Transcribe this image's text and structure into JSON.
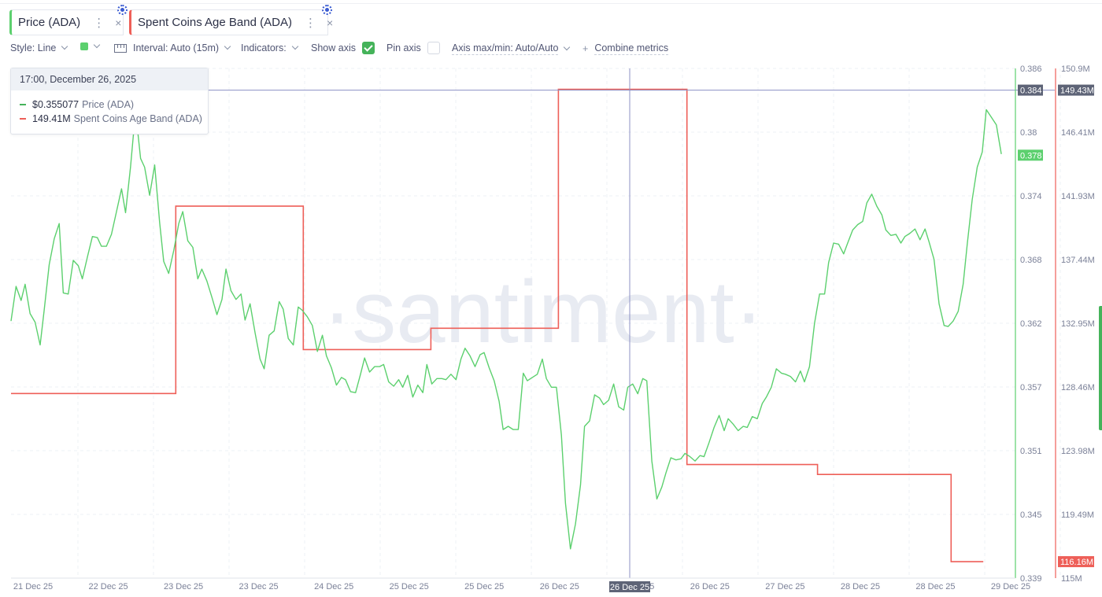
{
  "tabs": [
    {
      "label": "Price (ADA)",
      "color": "#5cd06e",
      "menu": "⋮",
      "close": "×"
    },
    {
      "label": "Spent Coins Age Band (ADA)",
      "color": "#ee5f58",
      "menu": "⋮",
      "close": "×"
    }
  ],
  "toolbar": {
    "style": "Style: Line",
    "interval": "Interval: Auto (15m)",
    "indicators": "Indicators:",
    "show_axis": "Show axis",
    "show_axis_checked": true,
    "pin_axis": "Pin axis",
    "pin_axis_checked": false,
    "axis_maxmin": "Axis max/min: Auto/Auto",
    "combine": "Combine metrics",
    "combine_prefix": "+"
  },
  "tooltip": {
    "time": "17:00, December 26, 2025",
    "rows": [
      {
        "value": "$0.355077",
        "name": "Price (ADA)",
        "color": "#45b35a"
      },
      {
        "value": "149.41M",
        "name": "Spent Coins Age Band (ADA)",
        "color": "#ee5f58"
      }
    ]
  },
  "chart_data": {
    "type": "line",
    "watermark": "·santiment·",
    "x_ticks": [
      "21 Dec 25",
      "22 Dec 25",
      "23 Dec 25",
      "23 Dec 25",
      "24 Dec 25",
      "25 Dec 25",
      "25 Dec 25",
      "26 Dec 25",
      "26 Dec 25",
      "26 Dec 25",
      "27 Dec 25",
      "28 Dec 25",
      "28 Dec 25",
      "29 Dec 25"
    ],
    "crosshair_label": "26 Dec 25",
    "price_axis": {
      "ticks": [
        "0.386",
        "0.38",
        "0.374",
        "0.368",
        "0.362",
        "0.357",
        "0.351",
        "0.345",
        "0.339"
      ],
      "range": [
        0.339,
        0.386
      ],
      "crosshair_badge": "0.384",
      "last_badge": "0.378",
      "color": "#5cd06e"
    },
    "band_axis": {
      "ticks": [
        "150.9M",
        "146.41M",
        "141.93M",
        "137.44M",
        "132.95M",
        "128.46M",
        "123.98M",
        "119.49M",
        "115M"
      ],
      "range": [
        115,
        150.9
      ],
      "crosshair_badge": "149.43M",
      "last_badge": "116.16M",
      "color": "#ee5f58"
    },
    "series": [
      {
        "name": "Price (ADA)",
        "color": "#5cd06e",
        "points": [
          [
            0.0,
            0.3627
          ],
          [
            0.005,
            0.3659
          ],
          [
            0.01,
            0.3646
          ],
          [
            0.014,
            0.3661
          ],
          [
            0.019,
            0.3634
          ],
          [
            0.024,
            0.3626
          ],
          [
            0.029,
            0.3605
          ],
          [
            0.033,
            0.3637
          ],
          [
            0.038,
            0.3679
          ],
          [
            0.043,
            0.3703
          ],
          [
            0.048,
            0.3717
          ],
          [
            0.052,
            0.3653
          ],
          [
            0.057,
            0.3652
          ],
          [
            0.062,
            0.3683
          ],
          [
            0.067,
            0.3678
          ],
          [
            0.071,
            0.3666
          ],
          [
            0.076,
            0.3686
          ],
          [
            0.081,
            0.3705
          ],
          [
            0.086,
            0.3704
          ],
          [
            0.09,
            0.3696
          ],
          [
            0.095,
            0.3696
          ],
          [
            0.1,
            0.3707
          ],
          [
            0.105,
            0.3728
          ],
          [
            0.11,
            0.3749
          ],
          [
            0.114,
            0.3727
          ],
          [
            0.119,
            0.3769
          ],
          [
            0.124,
            0.3821
          ],
          [
            0.129,
            0.3777
          ],
          [
            0.133,
            0.3769
          ],
          [
            0.138,
            0.3743
          ],
          [
            0.143,
            0.3771
          ],
          [
            0.148,
            0.3718
          ],
          [
            0.152,
            0.3682
          ],
          [
            0.157,
            0.3671
          ],
          [
            0.162,
            0.3692
          ],
          [
            0.167,
            0.3717
          ],
          [
            0.171,
            0.3728
          ],
          [
            0.176,
            0.3701
          ],
          [
            0.181,
            0.3695
          ],
          [
            0.186,
            0.3666
          ],
          [
            0.19,
            0.3675
          ],
          [
            0.195,
            0.3664
          ],
          [
            0.2,
            0.3649
          ],
          [
            0.205,
            0.3633
          ],
          [
            0.21,
            0.3647
          ],
          [
            0.214,
            0.3675
          ],
          [
            0.219,
            0.3655
          ],
          [
            0.224,
            0.3647
          ],
          [
            0.229,
            0.3652
          ],
          [
            0.233,
            0.3628
          ],
          [
            0.238,
            0.3643
          ],
          [
            0.243,
            0.3616
          ],
          [
            0.248,
            0.3592
          ],
          [
            0.252,
            0.3583
          ],
          [
            0.257,
            0.3614
          ],
          [
            0.262,
            0.3618
          ],
          [
            0.267,
            0.3645
          ],
          [
            0.271,
            0.3638
          ],
          [
            0.276,
            0.3611
          ],
          [
            0.281,
            0.3605
          ],
          [
            0.286,
            0.364
          ],
          [
            0.29,
            0.3637
          ],
          [
            0.295,
            0.3631
          ],
          [
            0.3,
            0.3623
          ],
          [
            0.305,
            0.3599
          ],
          [
            0.31,
            0.3614
          ],
          [
            0.314,
            0.3595
          ],
          [
            0.319,
            0.3584
          ],
          [
            0.324,
            0.3568
          ],
          [
            0.329,
            0.3575
          ],
          [
            0.333,
            0.3573
          ],
          [
            0.338,
            0.3562
          ],
          [
            0.343,
            0.3561
          ],
          [
            0.348,
            0.3578
          ],
          [
            0.352,
            0.3593
          ],
          [
            0.357,
            0.358
          ],
          [
            0.362,
            0.3585
          ],
          [
            0.367,
            0.3585
          ],
          [
            0.371,
            0.3587
          ],
          [
            0.376,
            0.3571
          ],
          [
            0.381,
            0.3567
          ],
          [
            0.386,
            0.3573
          ],
          [
            0.39,
            0.3566
          ],
          [
            0.395,
            0.3577
          ],
          [
            0.4,
            0.3557
          ],
          [
            0.405,
            0.3568
          ],
          [
            0.41,
            0.3561
          ],
          [
            0.414,
            0.3587
          ],
          [
            0.419,
            0.3569
          ],
          [
            0.424,
            0.3574
          ],
          [
            0.429,
            0.3574
          ],
          [
            0.433,
            0.3573
          ],
          [
            0.438,
            0.3578
          ],
          [
            0.443,
            0.3573
          ],
          [
            0.448,
            0.3592
          ],
          [
            0.452,
            0.3602
          ],
          [
            0.457,
            0.3595
          ],
          [
            0.462,
            0.3585
          ],
          [
            0.467,
            0.3596
          ],
          [
            0.471,
            0.3598
          ],
          [
            0.476,
            0.3584
          ],
          [
            0.481,
            0.3572
          ],
          [
            0.486,
            0.3553
          ],
          [
            0.49,
            0.3527
          ],
          [
            0.495,
            0.353
          ],
          [
            0.5,
            0.3527
          ],
          [
            0.505,
            0.3527
          ],
          [
            0.51,
            0.3579
          ],
          [
            0.514,
            0.3572
          ],
          [
            0.519,
            0.3575
          ],
          [
            0.524,
            0.3578
          ],
          [
            0.529,
            0.3592
          ],
          [
            0.533,
            0.3574
          ],
          [
            0.538,
            0.3566
          ],
          [
            0.543,
            0.3566
          ],
          [
            0.548,
            0.3522
          ],
          [
            0.552,
            0.3459
          ],
          [
            0.557,
            0.3417
          ],
          [
            0.562,
            0.344
          ],
          [
            0.567,
            0.3476
          ],
          [
            0.571,
            0.353
          ],
          [
            0.576,
            0.3535
          ],
          [
            0.581,
            0.3559
          ],
          [
            0.586,
            0.3556
          ],
          [
            0.59,
            0.355
          ],
          [
            0.595,
            0.3554
          ],
          [
            0.6,
            0.3569
          ],
          [
            0.605,
            0.3548
          ],
          [
            0.61,
            0.3545
          ],
          [
            0.614,
            0.3566
          ],
          [
            0.619,
            0.3569
          ],
          [
            0.624,
            0.356
          ],
          [
            0.629,
            0.3574
          ],
          [
            0.633,
            0.3572
          ],
          [
            0.638,
            0.3498
          ],
          [
            0.643,
            0.3463
          ],
          [
            0.648,
            0.3474
          ],
          [
            0.652,
            0.3487
          ],
          [
            0.657,
            0.3501
          ],
          [
            0.662,
            0.3499
          ],
          [
            0.667,
            0.35
          ],
          [
            0.671,
            0.3505
          ],
          [
            0.676,
            0.3502
          ],
          [
            0.681,
            0.3498
          ],
          [
            0.686,
            0.3503
          ],
          [
            0.69,
            0.3502
          ],
          [
            0.695,
            0.3515
          ],
          [
            0.7,
            0.3529
          ],
          [
            0.705,
            0.354
          ],
          [
            0.71,
            0.3526
          ],
          [
            0.714,
            0.3537
          ],
          [
            0.719,
            0.3532
          ],
          [
            0.724,
            0.3526
          ],
          [
            0.729,
            0.353
          ],
          [
            0.733,
            0.3529
          ],
          [
            0.738,
            0.3539
          ],
          [
            0.743,
            0.3537
          ],
          [
            0.748,
            0.3551
          ],
          [
            0.752,
            0.3557
          ],
          [
            0.757,
            0.3566
          ],
          [
            0.762,
            0.3583
          ],
          [
            0.767,
            0.3579
          ],
          [
            0.771,
            0.3578
          ],
          [
            0.776,
            0.3576
          ],
          [
            0.781,
            0.3571
          ],
          [
            0.786,
            0.3581
          ],
          [
            0.79,
            0.3571
          ],
          [
            0.795,
            0.3585
          ],
          [
            0.8,
            0.3625
          ],
          [
            0.805,
            0.3652
          ],
          [
            0.81,
            0.3652
          ],
          [
            0.814,
            0.3681
          ],
          [
            0.819,
            0.3699
          ],
          [
            0.824,
            0.3698
          ],
          [
            0.829,
            0.3689
          ],
          [
            0.833,
            0.3699
          ],
          [
            0.838,
            0.3711
          ],
          [
            0.843,
            0.3716
          ],
          [
            0.848,
            0.3719
          ],
          [
            0.852,
            0.3736
          ],
          [
            0.857,
            0.3744
          ],
          [
            0.862,
            0.3733
          ],
          [
            0.867,
            0.3725
          ],
          [
            0.871,
            0.3711
          ],
          [
            0.876,
            0.3706
          ],
          [
            0.881,
            0.3707
          ],
          [
            0.886,
            0.3699
          ],
          [
            0.89,
            0.3705
          ],
          [
            0.895,
            0.3708
          ],
          [
            0.9,
            0.3712
          ],
          [
            0.905,
            0.3702
          ],
          [
            0.91,
            0.3712
          ],
          [
            0.914,
            0.37
          ],
          [
            0.919,
            0.3684
          ],
          [
            0.924,
            0.3643
          ],
          [
            0.929,
            0.3623
          ],
          [
            0.933,
            0.3622
          ],
          [
            0.938,
            0.3627
          ],
          [
            0.943,
            0.3636
          ],
          [
            0.948,
            0.3661
          ],
          [
            0.952,
            0.3698
          ],
          [
            0.957,
            0.3739
          ],
          [
            0.962,
            0.3769
          ],
          [
            0.967,
            0.3783
          ],
          [
            0.971,
            0.3822
          ],
          [
            0.976,
            0.3815
          ],
          [
            0.981,
            0.3808
          ],
          [
            0.986,
            0.3781
          ]
        ]
      },
      {
        "name": "Spent Coins Age Band (ADA)",
        "color": "#ee5f58",
        "steps": [
          [
            0.0,
            128.0
          ],
          [
            0.164,
            128.0
          ],
          [
            0.164,
            141.2
          ],
          [
            0.291,
            141.2
          ],
          [
            0.291,
            131.1
          ],
          [
            0.418,
            131.1
          ],
          [
            0.418,
            132.6
          ],
          [
            0.545,
            132.6
          ],
          [
            0.545,
            149.43
          ],
          [
            0.673,
            149.43
          ],
          [
            0.673,
            123.0
          ],
          [
            0.803,
            123.0
          ],
          [
            0.803,
            122.3
          ],
          [
            0.936,
            122.3
          ],
          [
            0.936,
            116.16
          ],
          [
            0.968,
            116.16
          ]
        ]
      }
    ]
  }
}
